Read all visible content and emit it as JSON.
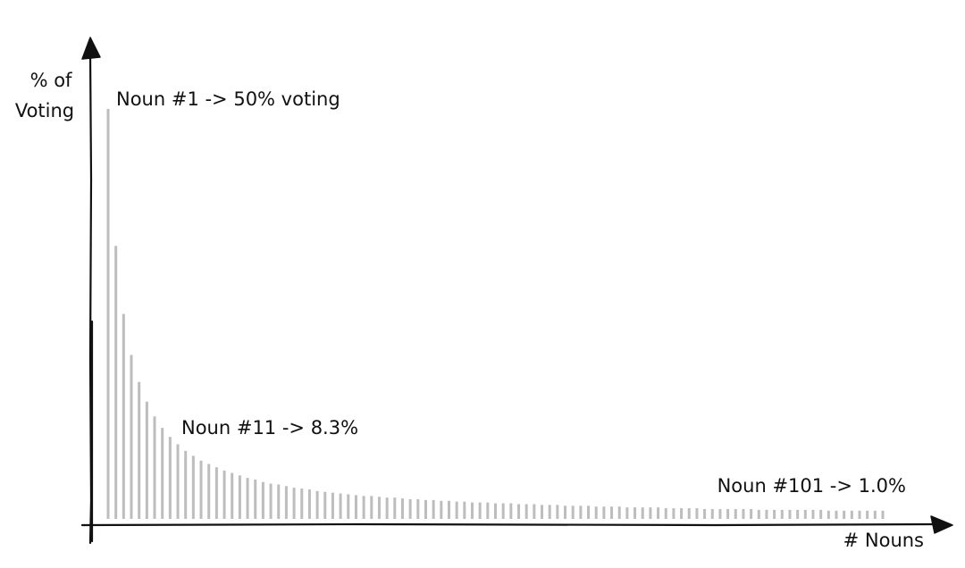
{
  "chart_data": {
    "type": "bar",
    "ylabel_lines": [
      "% of",
      "Voting"
    ],
    "xlabel": "# Nouns",
    "annotations": [
      {
        "text": "Noun #1 -> 50% voting",
        "x": 1,
        "y": 50
      },
      {
        "text": "Noun #11 -> 8.3%",
        "x": 11,
        "y": 8.3
      },
      {
        "text": "Noun #101 -> 1.0%",
        "x": 101,
        "y": 1.0
      }
    ],
    "x": [
      1,
      2,
      3,
      4,
      5,
      6,
      7,
      8,
      9,
      10,
      11,
      12,
      13,
      14,
      15,
      16,
      17,
      18,
      19,
      20,
      21,
      22,
      23,
      24,
      25,
      26,
      27,
      28,
      29,
      30,
      31,
      32,
      33,
      34,
      35,
      36,
      37,
      38,
      39,
      40,
      41,
      42,
      43,
      44,
      45,
      46,
      47,
      48,
      49,
      50,
      51,
      52,
      53,
      54,
      55,
      56,
      57,
      58,
      59,
      60,
      61,
      62,
      63,
      64,
      65,
      66,
      67,
      68,
      69,
      70,
      71,
      72,
      73,
      74,
      75,
      76,
      77,
      78,
      79,
      80,
      81,
      82,
      83,
      84,
      85,
      86,
      87,
      88,
      89,
      90,
      91,
      92,
      93,
      94,
      95,
      96,
      97,
      98,
      99,
      100,
      101
    ],
    "values": [
      50,
      33.3,
      25,
      20,
      16.7,
      14.3,
      12.5,
      11.1,
      10,
      9.1,
      8.3,
      7.7,
      7.1,
      6.7,
      6.3,
      5.9,
      5.6,
      5.3,
      5,
      4.8,
      4.5,
      4.3,
      4.2,
      4,
      3.8,
      3.7,
      3.6,
      3.4,
      3.3,
      3.2,
      3.1,
      3,
      2.9,
      2.8,
      2.8,
      2.7,
      2.6,
      2.6,
      2.5,
      2.4,
      2.4,
      2.3,
      2.3,
      2.2,
      2.2,
      2.1,
      2.1,
      2,
      2,
      2,
      1.9,
      1.9,
      1.9,
      1.8,
      1.8,
      1.8,
      1.7,
      1.7,
      1.7,
      1.6,
      1.6,
      1.6,
      1.6,
      1.5,
      1.5,
      1.5,
      1.5,
      1.4,
      1.4,
      1.4,
      1.4,
      1.4,
      1.3,
      1.3,
      1.3,
      1.3,
      1.3,
      1.2,
      1.2,
      1.2,
      1.2,
      1.2,
      1.2,
      1.2,
      1.1,
      1.1,
      1.1,
      1.1,
      1.1,
      1.1,
      1.1,
      1.1,
      1.1,
      1,
      1,
      1,
      1,
      1,
      1,
      1,
      1
    ],
    "ylim": [
      0,
      52
    ],
    "xlim": [
      0,
      104
    ],
    "grid": false,
    "legend": "none",
    "colors": {
      "bars": "#bdbdbd",
      "axes": "#111111",
      "text": "#111111"
    }
  }
}
